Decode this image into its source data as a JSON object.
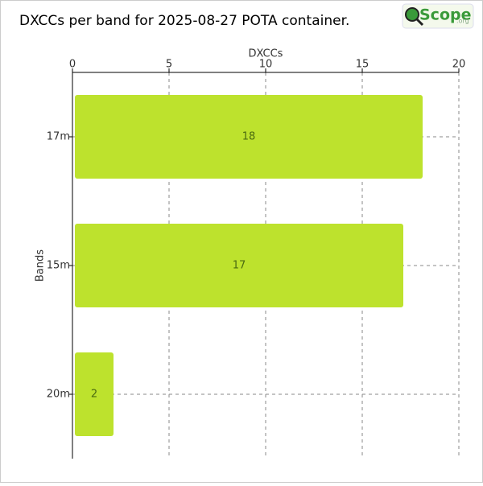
{
  "chart_data": {
    "type": "barh",
    "title": "DXCCs per band for 2025-08-27 POTA container.",
    "xlabel": "DXCCs",
    "ylabel": "Bands",
    "categories": [
      "17m",
      "15m",
      "20m"
    ],
    "values": [
      18,
      17,
      2
    ],
    "color": "#bde22d",
    "xlim": [
      0,
      20
    ],
    "xticks": [
      0,
      5,
      10,
      15,
      20
    ],
    "grid": true
  },
  "logo": {
    "text": "Scope",
    "suffix": ".org"
  }
}
